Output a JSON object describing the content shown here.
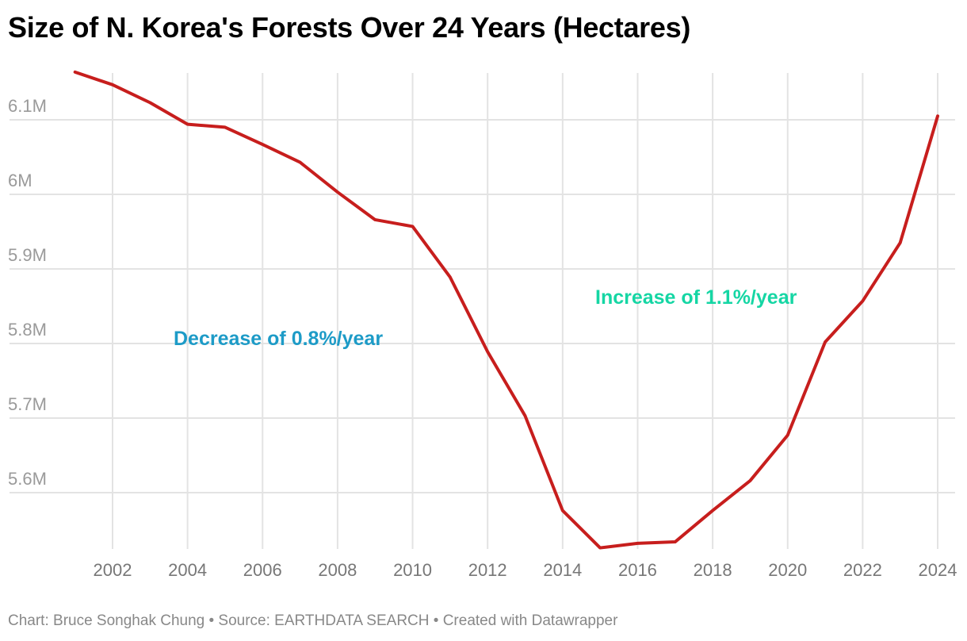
{
  "chart_data": {
    "type": "line",
    "title": "Size of N. Korea's Forests Over 24 Years (Hectares)",
    "xlabel": "",
    "ylabel": "",
    "x": [
      2001,
      2002,
      2003,
      2004,
      2005,
      2006,
      2007,
      2008,
      2009,
      2010,
      2011,
      2012,
      2013,
      2014,
      2015,
      2016,
      2017,
      2018,
      2019,
      2020,
      2021,
      2022,
      2023,
      2024
    ],
    "series": [
      {
        "values": [
          6164000,
          6147000,
          6123000,
          6094000,
          6090000,
          6067000,
          6043000,
          6003000,
          5966000,
          5957000,
          5889000,
          5789000,
          5703000,
          5576000,
          5526000,
          5532000,
          5534000,
          5576000,
          5616000,
          5677000,
          5802000,
          5857000,
          5935000,
          6105000
        ],
        "color": "#c71e1d"
      }
    ],
    "xticks": [
      "2002",
      "2004",
      "2006",
      "2008",
      "2010",
      "2012",
      "2014",
      "2016",
      "2018",
      "2020",
      "2022",
      "2024"
    ],
    "yticks": [
      {
        "value": 5600000,
        "label": "5.6M"
      },
      {
        "value": 5700000,
        "label": "5.7M"
      },
      {
        "value": 5800000,
        "label": "5.8M"
      },
      {
        "value": 5900000,
        "label": "5.9M"
      },
      {
        "value": 6000000,
        "label": "6M"
      },
      {
        "value": 6100000,
        "label": "6.1M"
      }
    ],
    "xlim": [
      2001,
      2024
    ],
    "ylim": [
      5526000,
      6164000
    ],
    "grid": true,
    "annotations": [
      {
        "text": "Decrease of 0.8%/year",
        "x": 2010,
        "y": 5800000,
        "color": "#1d9bc7"
      },
      {
        "text": "Increase of 1.1%/year",
        "x": 2019,
        "y": 5855000,
        "color": "#15d6a4"
      }
    ]
  },
  "footer": "Chart: Bruce Songhak Chung • Source: EARTHDATA SEARCH • Created with Datawrapper"
}
